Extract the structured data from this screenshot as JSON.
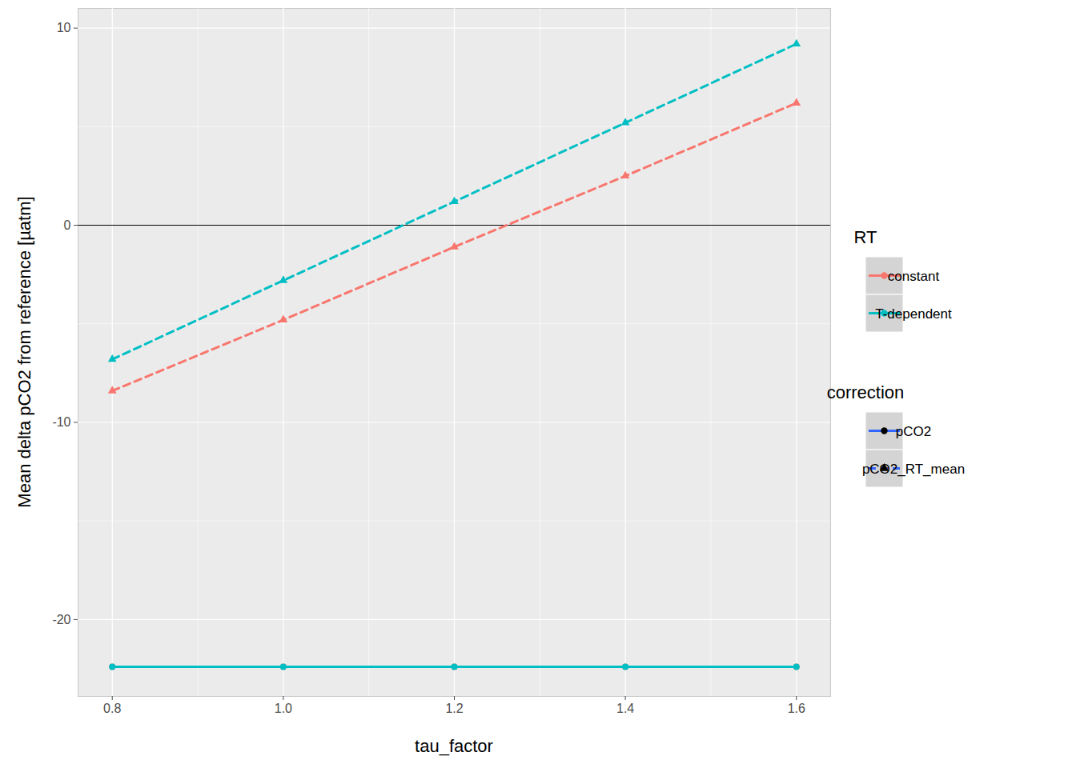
{
  "chart_data": {
    "type": "line",
    "x_label": "tau_factor",
    "y_label": "Mean delta pCO2 from reference [µatm]",
    "x": [
      0.8,
      1.0,
      1.2,
      1.4,
      1.6
    ],
    "xlim": [
      0.76,
      1.64
    ],
    "xticks": [
      0.8,
      {
        "value": 1.0,
        "label": "1.0"
      },
      1.2,
      1.4,
      1.6
    ],
    "ylim": [
      -23.9,
      11.0
    ],
    "yticks": [
      -20,
      -10,
      0,
      10
    ],
    "grid": true,
    "hline": 0,
    "legend": "right",
    "legends": [
      {
        "title": "RT",
        "entries": [
          {
            "name": "constant",
            "color": "#F8766D",
            "marker": "circle",
            "line_style": "solid"
          },
          {
            "name": "T-dependent",
            "color": "#00BFC4",
            "marker": "circle",
            "line_style": "solid"
          }
        ]
      },
      {
        "title": "correction",
        "entries": [
          {
            "name": "pCO2",
            "color": "#3366FF",
            "marker": "circle",
            "line_style": "solid"
          },
          {
            "name": "pCO2_RT_mean",
            "color": "#3366FF",
            "marker": "triangle",
            "line_style": "dashed"
          }
        ]
      }
    ],
    "series": [
      {
        "name": "constant",
        "correction": "pCO2",
        "color": "#F8766D",
        "line_style": "solid",
        "marker": "circle",
        "values": [
          -22.4,
          -22.4,
          -22.4,
          -22.4,
          -22.4
        ]
      },
      {
        "name": "T-dependent",
        "correction": "pCO2",
        "color": "#00BFC4",
        "line_style": "solid",
        "marker": "circle",
        "values": [
          -22.4,
          -22.4,
          -22.4,
          -22.4,
          -22.4
        ]
      },
      {
        "name": "constant",
        "correction": "pCO2_RT_mean",
        "color": "#F8766D",
        "line_style": "dashed",
        "marker": "triangle",
        "values": [
          -8.4,
          -4.8,
          -1.1,
          2.5,
          6.2
        ]
      },
      {
        "name": "T-dependent",
        "correction": "pCO2_RT_mean",
        "color": "#00BFC4",
        "line_style": "dashed",
        "marker": "triangle",
        "values": [
          -6.8,
          -2.8,
          1.2,
          5.2,
          9.2
        ]
      }
    ]
  }
}
